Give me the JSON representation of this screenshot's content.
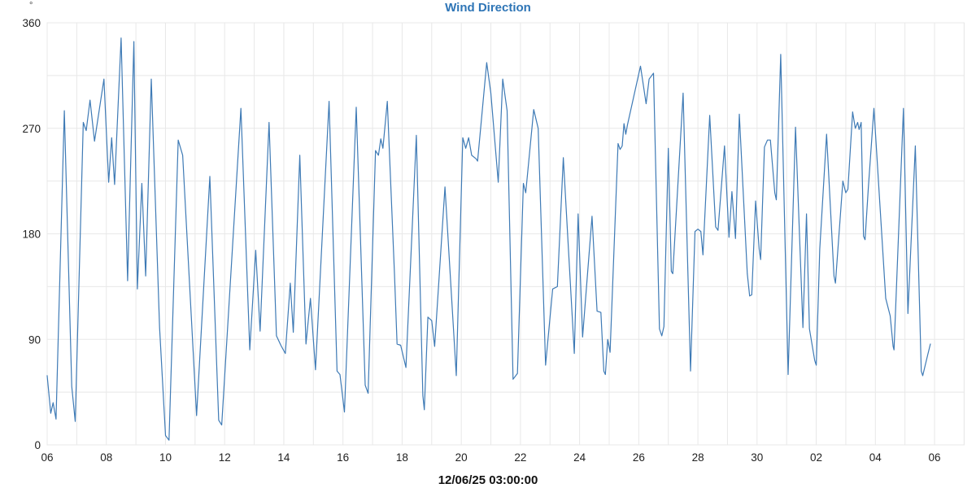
{
  "title": "Wind Direction",
  "y_axis": {
    "unit": "°",
    "major_ticks": [
      0,
      90,
      180,
      270,
      360
    ],
    "grid_step": 45,
    "min": 0,
    "max": 360
  },
  "x_axis": {
    "tick_hours": [
      6,
      8,
      10,
      12,
      14,
      16,
      18,
      20,
      22,
      24,
      26,
      28,
      30,
      32,
      34,
      36
    ],
    "tick_labels": [
      "06",
      "08",
      "10",
      "12",
      "14",
      "16",
      "18",
      "20",
      "22",
      "24",
      "26",
      "28",
      "30",
      "02",
      "04",
      "06"
    ],
    "minor_step": 1,
    "min": 6,
    "max": 37,
    "footer_label": "12/06/25 03:00:00"
  },
  "colors": {
    "line": "#3e7ab5",
    "title": "#2e75b6",
    "grid": "#e8e8e8",
    "axis_text": "#222222"
  },
  "chart_data": {
    "type": "line",
    "title": "Wind Direction",
    "ylabel": "°",
    "ylim": [
      0,
      360
    ],
    "xlim": [
      6,
      37
    ],
    "grid": true,
    "legend": false,
    "x_tick_labels": [
      "06",
      "08",
      "10",
      "12",
      "14",
      "16",
      "18",
      "20",
      "22",
      "24",
      "26",
      "28",
      "30",
      "02",
      "04",
      "06"
    ],
    "footer_label": "12/06/25 03:00:00",
    "series": [
      {
        "name": "Wind Direction",
        "color": "#3e7ab5",
        "points": [
          [
            6.0,
            59
          ],
          [
            6.12,
            27
          ],
          [
            6.2,
            36
          ],
          [
            6.3,
            22
          ],
          [
            6.58,
            285
          ],
          [
            6.83,
            50
          ],
          [
            6.95,
            20
          ],
          [
            7.22,
            275
          ],
          [
            7.32,
            268
          ],
          [
            7.45,
            294
          ],
          [
            7.6,
            259
          ],
          [
            7.92,
            312
          ],
          [
            8.08,
            224
          ],
          [
            8.18,
            262
          ],
          [
            8.28,
            222
          ],
          [
            8.5,
            347
          ],
          [
            8.72,
            140
          ],
          [
            8.93,
            344
          ],
          [
            9.05,
            133
          ],
          [
            9.2,
            223
          ],
          [
            9.33,
            144
          ],
          [
            9.52,
            312
          ],
          [
            9.8,
            100
          ],
          [
            10.0,
            8
          ],
          [
            10.12,
            4
          ],
          [
            10.43,
            260
          ],
          [
            10.58,
            247
          ],
          [
            11.05,
            25
          ],
          [
            11.5,
            229
          ],
          [
            11.8,
            21
          ],
          [
            11.9,
            17
          ],
          [
            12.55,
            287
          ],
          [
            12.85,
            81
          ],
          [
            13.05,
            166
          ],
          [
            13.2,
            97
          ],
          [
            13.5,
            275
          ],
          [
            13.75,
            93
          ],
          [
            13.9,
            85
          ],
          [
            14.05,
            78
          ],
          [
            14.22,
            138
          ],
          [
            14.32,
            96
          ],
          [
            14.54,
            247
          ],
          [
            14.75,
            86
          ],
          [
            14.9,
            125
          ],
          [
            15.07,
            64
          ],
          [
            15.53,
            293
          ],
          [
            15.8,
            63
          ],
          [
            15.9,
            60
          ],
          [
            16.05,
            28
          ],
          [
            16.45,
            288
          ],
          [
            16.75,
            51
          ],
          [
            16.85,
            44
          ],
          [
            17.1,
            251
          ],
          [
            17.2,
            247
          ],
          [
            17.28,
            261
          ],
          [
            17.35,
            253
          ],
          [
            17.5,
            293
          ],
          [
            17.74,
            146
          ],
          [
            17.83,
            86
          ],
          [
            17.95,
            85
          ],
          [
            18.13,
            66
          ],
          [
            18.48,
            264
          ],
          [
            18.7,
            42
          ],
          [
            18.75,
            30
          ],
          [
            18.87,
            109
          ],
          [
            19.0,
            106
          ],
          [
            19.1,
            84
          ],
          [
            19.45,
            220
          ],
          [
            19.83,
            59
          ],
          [
            20.05,
            262
          ],
          [
            20.15,
            253
          ],
          [
            20.25,
            262
          ],
          [
            20.35,
            247
          ],
          [
            20.5,
            244
          ],
          [
            20.55,
            242
          ],
          [
            20.86,
            326
          ],
          [
            21.0,
            300
          ],
          [
            21.25,
            224
          ],
          [
            21.4,
            312
          ],
          [
            21.55,
            285
          ],
          [
            21.75,
            56
          ],
          [
            21.9,
            61
          ],
          [
            22.1,
            223
          ],
          [
            22.18,
            215
          ],
          [
            22.45,
            286
          ],
          [
            22.6,
            270
          ],
          [
            22.85,
            68
          ],
          [
            23.09,
            133
          ],
          [
            23.25,
            135
          ],
          [
            23.45,
            245
          ],
          [
            23.82,
            78
          ],
          [
            23.95,
            197
          ],
          [
            24.1,
            92
          ],
          [
            24.42,
            195
          ],
          [
            24.59,
            114
          ],
          [
            24.72,
            113
          ],
          [
            24.82,
            63
          ],
          [
            24.87,
            60
          ],
          [
            24.95,
            90
          ],
          [
            25.03,
            79
          ],
          [
            25.3,
            257
          ],
          [
            25.37,
            252
          ],
          [
            25.44,
            255
          ],
          [
            25.5,
            274
          ],
          [
            25.56,
            265
          ],
          [
            25.62,
            273
          ],
          [
            26.06,
            323
          ],
          [
            26.25,
            291
          ],
          [
            26.35,
            312
          ],
          [
            26.5,
            317
          ],
          [
            26.7,
            99
          ],
          [
            26.78,
            93
          ],
          [
            26.85,
            101
          ],
          [
            27.0,
            253
          ],
          [
            27.1,
            148
          ],
          [
            27.15,
            146
          ],
          [
            27.5,
            300
          ],
          [
            27.75,
            63
          ],
          [
            27.9,
            182
          ],
          [
            28.0,
            184
          ],
          [
            28.1,
            182
          ],
          [
            28.17,
            162
          ],
          [
            28.4,
            281
          ],
          [
            28.6,
            186
          ],
          [
            28.68,
            183
          ],
          [
            28.9,
            255
          ],
          [
            29.05,
            177
          ],
          [
            29.15,
            216
          ],
          [
            29.27,
            176
          ],
          [
            29.4,
            282
          ],
          [
            29.67,
            146
          ],
          [
            29.75,
            127
          ],
          [
            29.82,
            128
          ],
          [
            29.95,
            208
          ],
          [
            30.07,
            167
          ],
          [
            30.12,
            158
          ],
          [
            30.25,
            254
          ],
          [
            30.35,
            260
          ],
          [
            30.45,
            260
          ],
          [
            30.6,
            215
          ],
          [
            30.65,
            209
          ],
          [
            30.8,
            333
          ],
          [
            31.05,
            60
          ],
          [
            31.3,
            271
          ],
          [
            31.55,
            100
          ],
          [
            31.67,
            197
          ],
          [
            31.77,
            99
          ],
          [
            31.95,
            72
          ],
          [
            32.0,
            68
          ],
          [
            32.12,
            167
          ],
          [
            32.35,
            265
          ],
          [
            32.6,
            144
          ],
          [
            32.65,
            138
          ],
          [
            32.9,
            225
          ],
          [
            33.0,
            215
          ],
          [
            33.07,
            218
          ],
          [
            33.23,
            284
          ],
          [
            33.32,
            270
          ],
          [
            33.4,
            275
          ],
          [
            33.45,
            269
          ],
          [
            33.52,
            275
          ],
          [
            33.6,
            178
          ],
          [
            33.65,
            175
          ],
          [
            33.76,
            219
          ],
          [
            33.95,
            287
          ],
          [
            34.35,
            125
          ],
          [
            34.5,
            110
          ],
          [
            34.6,
            84
          ],
          [
            34.63,
            81
          ],
          [
            34.95,
            287
          ],
          [
            35.1,
            112
          ],
          [
            35.35,
            255
          ],
          [
            35.55,
            63
          ],
          [
            35.6,
            59
          ],
          [
            35.77,
            77
          ],
          [
            35.86,
            86
          ]
        ]
      }
    ]
  }
}
